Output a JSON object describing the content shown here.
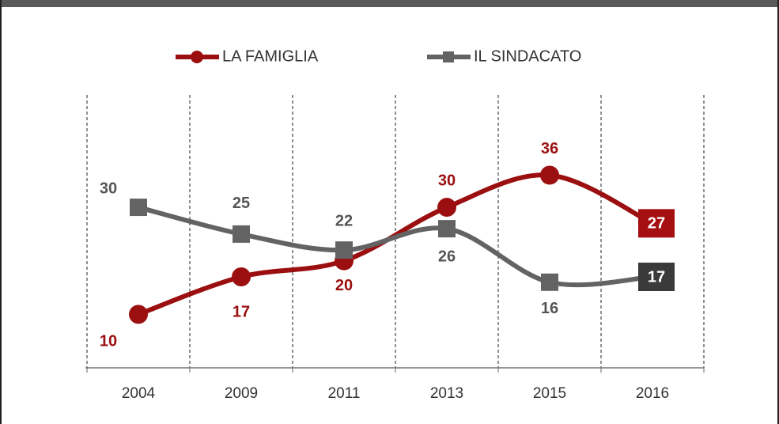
{
  "chart_data": {
    "type": "line",
    "categories": [
      "2004",
      "2009",
      "2011",
      "2013",
      "2015",
      "2016"
    ],
    "series": [
      {
        "name": "LA FAMIGLIA",
        "color": "#9b0f10",
        "values": [
          10,
          17,
          20,
          30,
          36,
          27
        ]
      },
      {
        "name": "IL SINDACATO",
        "color": "#636363",
        "values": [
          30,
          25,
          22,
          26,
          16,
          17
        ]
      }
    ],
    "ylim": [
      0,
      51
    ]
  }
}
